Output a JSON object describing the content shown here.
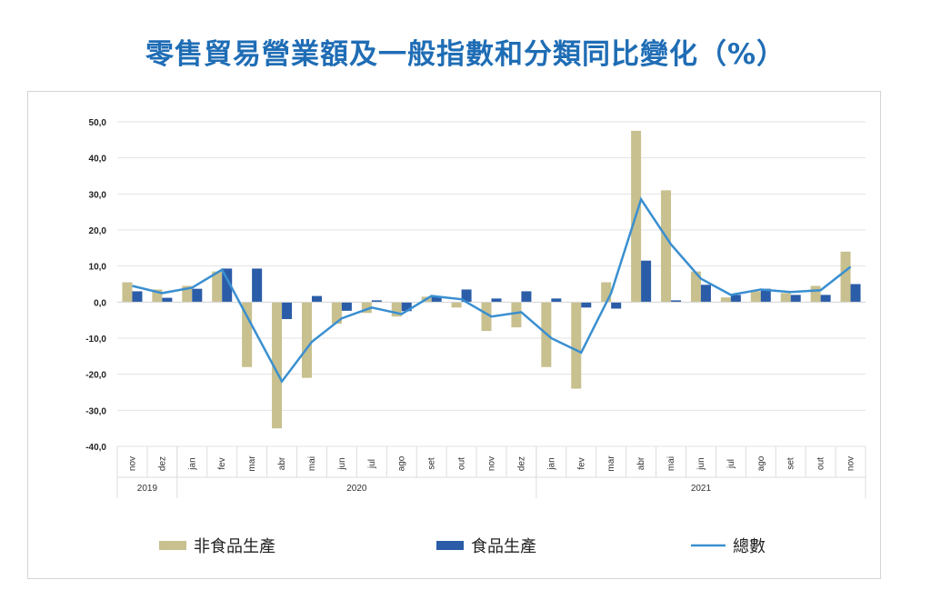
{
  "title": "零售貿易營業額及一般指數和分類同比變化（%）",
  "chart_data": {
    "type": "bar",
    "title": "零售貿易營業額及一般指數和分類同比變化（%）",
    "ylim": [
      -40,
      50
    ],
    "yticks": [
      "50,0",
      "40,0",
      "30,0",
      "20,0",
      "10,0",
      "0,0",
      "-10,0",
      "-20,0",
      "-30,0",
      "-40,0"
    ],
    "ytick_values": [
      50,
      40,
      30,
      20,
      10,
      0,
      -10,
      -20,
      -30,
      -40
    ],
    "categories": [
      "nov",
      "dez",
      "jan",
      "fev",
      "mar",
      "abr",
      "mai",
      "jun",
      "jul",
      "ago",
      "set",
      "out",
      "nov",
      "dez",
      "jan",
      "fev",
      "mar",
      "abr",
      "mai",
      "jun",
      "jul",
      "ago",
      "set",
      "out",
      "nov"
    ],
    "years": [
      {
        "label": "2019",
        "count": 2
      },
      {
        "label": "2020",
        "count": 12
      },
      {
        "label": "2021",
        "count": 11
      }
    ],
    "legend_position": "bottom",
    "series": [
      {
        "name": "非食品生產",
        "type": "bar",
        "color": "#c8c08e",
        "values": [
          5.5,
          3.5,
          4.5,
          8.5,
          -18,
          -35,
          -21,
          -6,
          -3,
          -4,
          1.5,
          -1.5,
          -8,
          -7,
          -18,
          -24,
          5.5,
          47.5,
          31,
          8.5,
          1.3,
          3,
          2.5,
          4.5,
          14
        ]
      },
      {
        "name": "食品生產",
        "type": "bar",
        "color": "#2a5ca8",
        "values": [
          3,
          1.2,
          3.7,
          9.3,
          9.3,
          -4.7,
          1.7,
          -2.4,
          0.5,
          -2.5,
          1.6,
          3.5,
          1,
          3,
          1,
          -1.5,
          -1.8,
          11.5,
          0.5,
          4.8,
          2,
          3.7,
          2,
          2,
          5
        ]
      },
      {
        "name": "總數",
        "type": "line",
        "color": "#3a8fd0",
        "values": [
          4.5,
          2.5,
          4,
          9,
          -6.5,
          -22,
          -11,
          -4.5,
          -1.5,
          -3.3,
          1.7,
          0.8,
          -4,
          -2.8,
          -10,
          -14,
          2.5,
          28.5,
          16,
          6.5,
          2,
          3.5,
          2.8,
          3.3,
          9.8
        ]
      }
    ]
  }
}
